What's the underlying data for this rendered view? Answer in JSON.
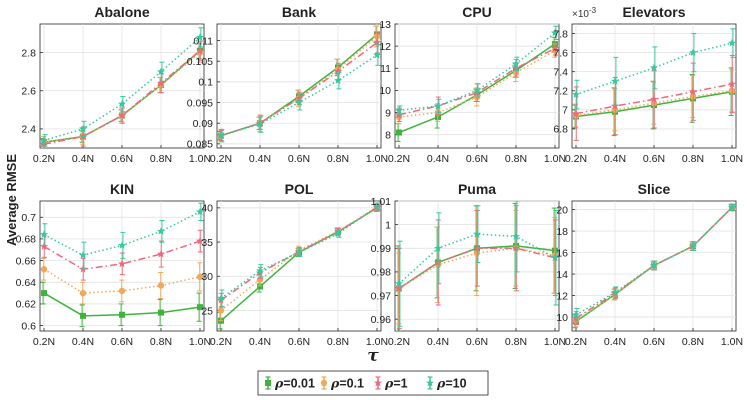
{
  "chart_data": {
    "type": "line",
    "ylabel": "Average RMSE",
    "xlabel": "τ",
    "x_ticks": [
      "0.2N",
      "0.4N",
      "0.6N",
      "0.8N",
      "1.0N"
    ],
    "legend": {
      "placement": "bottom-center",
      "entries": [
        {
          "symbol": "ρ",
          "label": "=0.01",
          "color": "#3db53d"
        },
        {
          "symbol": "ρ",
          "label": "=0.1",
          "color": "#f0a95c"
        },
        {
          "symbol": "ρ",
          "label": "=1",
          "color": "#ec6a7c"
        },
        {
          "symbol": "ρ",
          "label": "=10",
          "color": "#35c9a0"
        }
      ]
    },
    "grid": true,
    "panels": [
      {
        "title": "Abalone",
        "ylim": [
          2.3,
          2.95
        ],
        "yticks": [
          2.4,
          2.6,
          2.8
        ],
        "ytick_labels": [
          "2.4",
          "2.6",
          "2.8"
        ],
        "series": [
          {
            "values": [
              2.33,
              2.36,
              2.47,
              2.63,
              2.81
            ],
            "err": [
              0.02,
              0.03,
              0.03,
              0.04,
              0.04
            ]
          },
          {
            "values": [
              2.33,
              2.36,
              2.47,
              2.63,
              2.8
            ],
            "err": [
              0.03,
              0.04,
              0.04,
              0.04,
              0.05
            ]
          },
          {
            "values": [
              2.32,
              2.36,
              2.47,
              2.64,
              2.81
            ],
            "err": [
              0.02,
              0.05,
              0.04,
              0.05,
              0.05
            ]
          },
          {
            "values": [
              2.34,
              2.4,
              2.53,
              2.7,
              2.88
            ],
            "err": [
              0.03,
              0.04,
              0.04,
              0.05,
              0.05
            ]
          }
        ]
      },
      {
        "title": "Bank",
        "ylim": [
          0.084,
          0.114
        ],
        "yticks": [
          0.085,
          0.09,
          0.095,
          0.1,
          0.105,
          0.11
        ],
        "ytick_labels": [
          "0.085",
          "0.09",
          "0.095",
          "0.1",
          "0.105",
          "0.11"
        ],
        "series": [
          {
            "values": [
              0.087,
              0.09,
              0.0965,
              0.1035,
              0.1115
            ],
            "err": [
              0.001,
              0.0015,
              0.0015,
              0.002,
              0.002
            ]
          },
          {
            "values": [
              0.087,
              0.09,
              0.096,
              0.103,
              0.111
            ],
            "err": [
              0.0015,
              0.002,
              0.002,
              0.0025,
              0.0025
            ]
          },
          {
            "values": [
              0.087,
              0.09,
              0.096,
              0.1025,
              0.1095
            ],
            "err": [
              0.0012,
              0.0015,
              0.0015,
              0.002,
              0.0025
            ]
          },
          {
            "values": [
              0.087,
              0.0898,
              0.095,
              0.1003,
              0.1065
            ],
            "err": [
              0.0015,
              0.002,
              0.0018,
              0.002,
              0.0025
            ]
          }
        ]
      },
      {
        "title": "CPU",
        "ylim": [
          7.4,
          13.0
        ],
        "yticks": [
          8,
          9,
          10,
          11,
          12,
          13
        ],
        "ytick_labels": [
          "8",
          "9",
          "10",
          "11",
          "12",
          "13"
        ],
        "series": [
          {
            "values": [
              8.1,
              8.8,
              9.8,
              10.9,
              12.1
            ],
            "err": [
              0.4,
              0.5,
              0.3,
              0.3,
              0.3
            ]
          },
          {
            "values": [
              8.8,
              9.0,
              9.7,
              10.8,
              11.8
            ],
            "err": [
              0.3,
              0.4,
              0.4,
              0.4,
              0.3
            ]
          },
          {
            "values": [
              8.9,
              9.3,
              9.9,
              11.0,
              11.9
            ],
            "err": [
              0.3,
              0.4,
              0.4,
              0.4,
              0.3
            ]
          },
          {
            "values": [
              9.1,
              9.3,
              10.0,
              11.2,
              12.6
            ],
            "err": [
              0.2,
              0.3,
              0.3,
              0.3,
              0.3
            ]
          }
        ]
      },
      {
        "title": "Elevators",
        "multiplier": "×10",
        "multiplier_exp": "-3",
        "ylim": [
          6.6,
          7.9
        ],
        "yticks": [
          6.8,
          7,
          7.2,
          7.4,
          7.6,
          7.8
        ],
        "ytick_labels": [
          "6.8",
          "7",
          "7.2",
          "7.4",
          "7.6",
          "7.8"
        ],
        "series": [
          {
            "values": [
              6.93,
              6.98,
              7.05,
              7.12,
              7.19
            ],
            "err": [
              0.12,
              0.25,
              0.25,
              0.25,
              0.25
            ]
          },
          {
            "values": [
              6.94,
              7.0,
              7.07,
              7.14,
              7.2
            ],
            "err": [
              0.12,
              0.22,
              0.22,
              0.22,
              0.22
            ]
          },
          {
            "values": [
              6.96,
              7.04,
              7.11,
              7.19,
              7.27
            ],
            "err": [
              0.28,
              0.3,
              0.3,
              0.3,
              0.3
            ]
          },
          {
            "values": [
              7.16,
              7.3,
              7.44,
              7.6,
              7.7
            ],
            "err": [
              0.15,
              0.25,
              0.22,
              0.2,
              0.15
            ]
          }
        ]
      },
      {
        "title": "KIN",
        "ylim": [
          0.595,
          0.715
        ],
        "yticks": [
          0.6,
          0.62,
          0.64,
          0.66,
          0.68,
          0.7
        ],
        "ytick_labels": [
          "0.6",
          "0.62",
          "0.64",
          "0.66",
          "0.68",
          "0.7"
        ],
        "series": [
          {
            "values": [
              0.63,
              0.609,
              0.61,
              0.612,
              0.617
            ],
            "err": [
              0.01,
              0.01,
              0.01,
              0.012,
              0.013
            ]
          },
          {
            "values": [
              0.652,
              0.63,
              0.632,
              0.637,
              0.645
            ],
            "err": [
              0.01,
              0.01,
              0.01,
              0.012,
              0.013
            ]
          },
          {
            "values": [
              0.673,
              0.652,
              0.657,
              0.666,
              0.678
            ],
            "err": [
              0.01,
              0.01,
              0.01,
              0.012,
              0.01
            ]
          },
          {
            "values": [
              0.684,
              0.665,
              0.674,
              0.687,
              0.705
            ],
            "err": [
              0.01,
              0.012,
              0.012,
              0.01,
              0.008
            ]
          }
        ]
      },
      {
        "title": "POL",
        "ylim": [
          22,
          41
        ],
        "yticks": [
          25,
          30,
          35,
          40
        ],
        "ytick_labels": [
          "25",
          "30",
          "35",
          "40"
        ],
        "series": [
          {
            "values": [
              23.5,
              28.5,
              33.5,
              36.5,
              40.0
            ],
            "err": [
              1.2,
              0.8,
              0.6,
              0.5,
              0.5
            ]
          },
          {
            "values": [
              25.0,
              29.5,
              33.8,
              36.6,
              40.1
            ],
            "err": [
              1.5,
              0.9,
              0.6,
              0.5,
              0.5
            ]
          },
          {
            "values": [
              26.5,
              30.5,
              33.6,
              36.5,
              40.0
            ],
            "err": [
              1.0,
              0.8,
              0.6,
              0.5,
              0.5
            ]
          },
          {
            "values": [
              26.8,
              30.8,
              33.5,
              36.2,
              40.2
            ],
            "err": [
              1.2,
              0.9,
              0.6,
              0.5,
              0.5
            ]
          }
        ]
      },
      {
        "title": "Puma",
        "ylim": [
          0.955,
          1.01
        ],
        "yticks": [
          0.96,
          0.97,
          0.98,
          0.99,
          1,
          1.01
        ],
        "ytick_labels": [
          "0.96",
          "0.97",
          "0.98",
          "0.99",
          "1",
          "1.01"
        ],
        "series": [
          {
            "values": [
              0.973,
              0.984,
              0.99,
              0.991,
              0.989
            ],
            "err": [
              0.018,
              0.015,
              0.018,
              0.018,
              0.018
            ]
          },
          {
            "values": [
              0.973,
              0.983,
              0.988,
              0.99,
              0.987
            ],
            "err": [
              0.015,
              0.016,
              0.018,
              0.016,
              0.016
            ]
          },
          {
            "values": [
              0.973,
              0.984,
              0.99,
              0.99,
              0.986
            ],
            "err": [
              0.017,
              0.018,
              0.016,
              0.018,
              0.016
            ]
          },
          {
            "values": [
              0.975,
              0.99,
              0.996,
              0.995,
              0.986
            ],
            "err": [
              0.018,
              0.015,
              0.012,
              0.015,
              0.02
            ]
          }
        ]
      },
      {
        "title": "Slice",
        "ylim": [
          8.7,
          20.8
        ],
        "yticks": [
          10,
          12,
          14,
          16,
          18,
          20
        ],
        "ytick_labels": [
          "10",
          "12",
          "14",
          "16",
          "18",
          "20"
        ],
        "series": [
          {
            "values": [
              9.6,
              12.1,
              14.8,
              16.6,
              20.2
            ],
            "err": [
              0.6,
              0.5,
              0.4,
              0.4,
              0.3
            ]
          },
          {
            "values": [
              9.7,
              12.1,
              14.8,
              16.6,
              20.2
            ],
            "err": [
              0.6,
              0.5,
              0.4,
              0.4,
              0.3
            ]
          },
          {
            "values": [
              9.9,
              12.2,
              14.8,
              16.6,
              20.2
            ],
            "err": [
              0.6,
              0.5,
              0.4,
              0.4,
              0.3
            ]
          },
          {
            "values": [
              10.2,
              12.3,
              14.8,
              16.6,
              20.2
            ],
            "err": [
              0.6,
              0.5,
              0.4,
              0.4,
              0.3
            ]
          }
        ]
      }
    ]
  }
}
